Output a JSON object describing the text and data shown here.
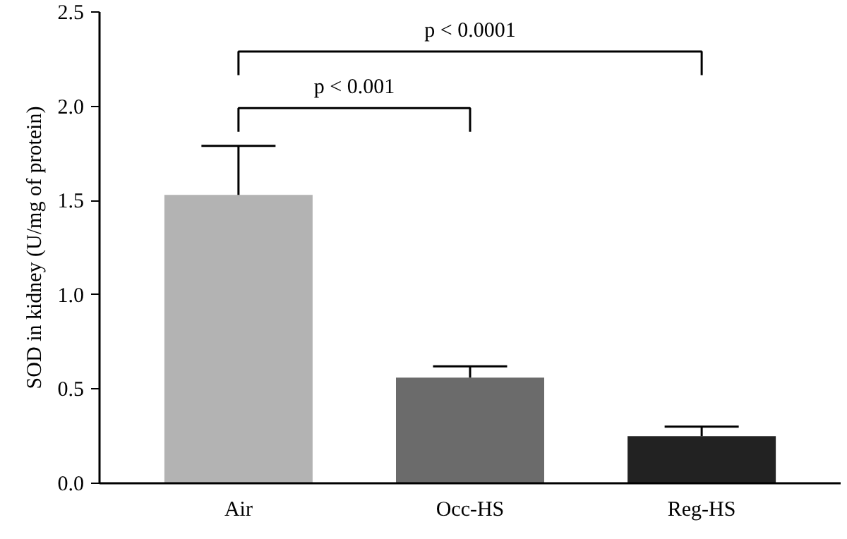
{
  "chart_data": {
    "type": "bar",
    "ylabel": "SOD in kidney (U/mg of protein)",
    "categories": [
      "Air",
      "Occ-HS",
      "Reg-HS"
    ],
    "values": [
      1.53,
      0.56,
      0.25
    ],
    "colors": [
      "#b3b3b3",
      "#6b6b6b",
      "#222222"
    ],
    "errors": [
      [
        1.53,
        1.79
      ],
      [
        0.56,
        0.62
      ],
      [
        0.25,
        0.3
      ]
    ],
    "ylim": [
      0,
      2.5
    ],
    "yticks": [
      {
        "value": 0,
        "label": "0.0"
      },
      {
        "value": 0.5,
        "label": "0.5"
      },
      {
        "value": 1,
        "label": "1.0"
      },
      {
        "value": 1.5,
        "label": "1.5"
      },
      {
        "value": 2,
        "label": "2.0"
      },
      {
        "value": 2.5,
        "label": "2.5"
      }
    ],
    "annotations": [
      "p < 0.001",
      "p < 0.0001"
    ],
    "grid": false
  }
}
